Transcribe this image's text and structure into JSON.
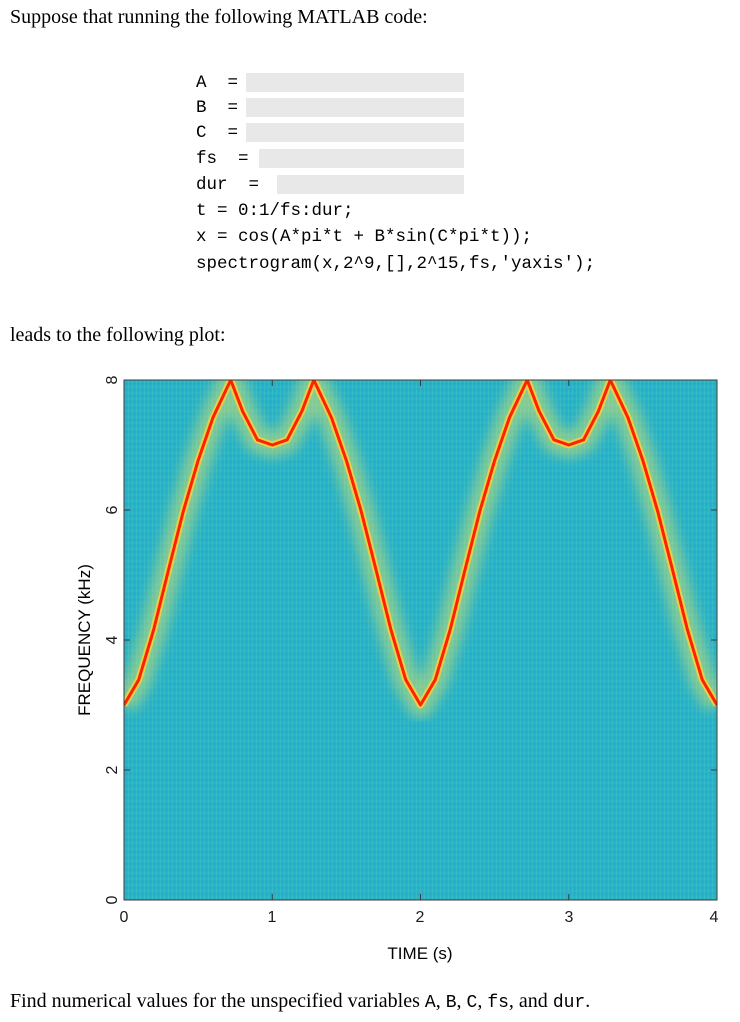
{
  "intro": "Suppose that running the following MATLAB code:",
  "code_lines": [
    {
      "text": "A  =",
      "blank": true
    },
    {
      "text": "B  =",
      "blank": true
    },
    {
      "text": "C  =",
      "blank": true
    },
    {
      "text": "fs  =",
      "blank": true
    },
    {
      "text": "dur  =",
      "blank": true
    },
    {
      "text": "t = 0:1/fs:dur;",
      "blank": false
    },
    {
      "text": "x = cos(A*pi*t + B*sin(C*pi*t));",
      "blank": false
    },
    {
      "text": "spectrogram(x,2^9,[],2^15,fs,'yaxis');",
      "blank": false
    }
  ],
  "leads": "leads to the following plot:",
  "chart_data": {
    "type": "spectrogram",
    "xlabel": "TIME (s)",
    "ylabel": "FREQUENCY (kHz)",
    "xlim": [
      0,
      4
    ],
    "ylim": [
      0,
      8
    ],
    "xticks": [
      "0",
      "1",
      "2",
      "3",
      "4"
    ],
    "yticks": [
      "0",
      "2",
      "4",
      "6",
      "8"
    ],
    "background_color": "#2bb3cf",
    "line_color": "#ff2200",
    "series": [
      {
        "x": [
          0,
          0.1,
          0.2,
          0.3,
          0.4,
          0.5,
          0.6,
          0.72,
          0.8,
          0.9,
          1.0,
          1.1,
          1.2,
          1.28,
          1.4,
          1.5,
          1.6,
          1.7,
          1.8,
          1.9,
          2.0,
          2.1,
          2.2,
          2.3,
          2.4,
          2.5,
          2.6,
          2.72,
          2.8,
          2.9,
          3.0,
          3.1,
          3.2,
          3.28,
          3.4,
          3.5,
          3.6,
          3.7,
          3.8,
          3.9,
          4.0
        ],
        "y": [
          3.0,
          3.39,
          4.16,
          5.08,
          5.98,
          6.76,
          7.42,
          8.0,
          7.52,
          7.08,
          7.0,
          7.08,
          7.52,
          8.0,
          7.42,
          6.76,
          5.98,
          5.08,
          4.16,
          3.39,
          3.0,
          3.39,
          4.16,
          5.08,
          5.98,
          6.76,
          7.42,
          8.0,
          7.52,
          7.08,
          7.0,
          7.08,
          7.52,
          8.0,
          7.42,
          6.76,
          5.98,
          5.08,
          4.16,
          3.39,
          3.0
        ]
      }
    ]
  },
  "question": {
    "lead": "Find numerical values for the unspecified variables ",
    "v1": "A",
    "sep1": ", ",
    "v2": "B",
    "sep2": ", ",
    "v3": "C",
    "sep3": ", ",
    "v4": "fs",
    "sep4": ", and ",
    "v5": "dur",
    "end": "."
  }
}
